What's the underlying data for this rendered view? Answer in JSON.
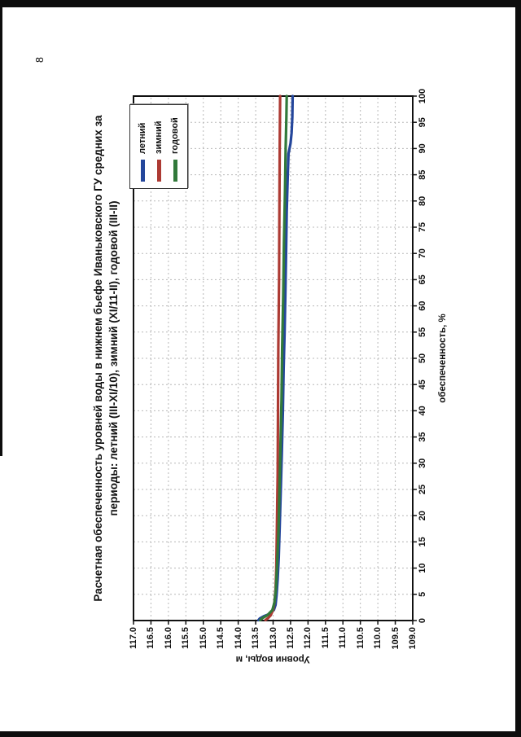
{
  "page": {
    "number": "8"
  },
  "chart_data": {
    "type": "line",
    "title_line1": "Расчетная обеспеченность уровней воды в нижнем бьефе Иваньковского ГУ средних за",
    "title_line2": "периоды: летний (III-XI/10), зимний (XI/11-II), годовой (III-II)",
    "xlabel": "обеспеченность, %",
    "ylabel": "Уровни воды, м",
    "xlim": [
      0,
      100
    ],
    "ylim": [
      109.0,
      117.0
    ],
    "x_ticks": [
      0,
      5,
      10,
      15,
      20,
      25,
      30,
      35,
      40,
      45,
      50,
      55,
      60,
      65,
      70,
      75,
      80,
      85,
      90,
      95,
      100
    ],
    "y_tick_labels": [
      "117.0",
      "116.5",
      "116.0",
      "115.5",
      "115.0",
      "114.5",
      "114.0",
      "113.5",
      "113.0",
      "112.5",
      "112.0",
      "111.5",
      "111.0",
      "110.5",
      "110.0",
      "109.5",
      "109.0"
    ],
    "grid": "dashed gridlines at every tick, both axes",
    "legend_position": "top-right inside plot",
    "series": [
      {
        "name": "летний",
        "color": "#24469b",
        "points": [
          [
            0.1,
            113.42
          ],
          [
            0.4,
            113.38
          ],
          [
            0.8,
            113.27
          ],
          [
            1.2,
            113.12
          ],
          [
            2,
            112.98
          ],
          [
            3,
            112.93
          ],
          [
            5,
            112.9
          ],
          [
            8,
            112.87
          ],
          [
            12,
            112.84
          ],
          [
            18,
            112.81
          ],
          [
            25,
            112.78
          ],
          [
            32,
            112.75
          ],
          [
            40,
            112.72
          ],
          [
            48,
            112.7
          ],
          [
            55,
            112.67
          ],
          [
            62,
            112.65
          ],
          [
            70,
            112.63
          ],
          [
            78,
            112.61
          ],
          [
            85,
            112.58
          ],
          [
            89,
            112.56
          ],
          [
            91,
            112.5
          ],
          [
            93,
            112.47
          ],
          [
            96,
            112.45
          ],
          [
            100,
            112.44
          ]
        ]
      },
      {
        "name": "зимний",
        "color": "#ad3a33",
        "points": [
          [
            0.1,
            113.22
          ],
          [
            0.5,
            113.14
          ],
          [
            1,
            113.07
          ],
          [
            2,
            113.0
          ],
          [
            3.5,
            112.96
          ],
          [
            6,
            112.93
          ],
          [
            10,
            112.91
          ],
          [
            18,
            112.89
          ],
          [
            28,
            112.87
          ],
          [
            40,
            112.86
          ],
          [
            52,
            112.85
          ],
          [
            65,
            112.83
          ],
          [
            78,
            112.82
          ],
          [
            90,
            112.81
          ],
          [
            100,
            112.8
          ]
        ]
      },
      {
        "name": "годовой",
        "color": "#31793a",
        "points": [
          [
            0.1,
            113.37
          ],
          [
            0.5,
            113.3
          ],
          [
            1,
            113.17
          ],
          [
            2,
            113.02
          ],
          [
            3.5,
            112.96
          ],
          [
            6,
            112.92
          ],
          [
            10,
            112.89
          ],
          [
            16,
            112.85
          ],
          [
            24,
            112.82
          ],
          [
            33,
            112.79
          ],
          [
            42,
            112.76
          ],
          [
            52,
            112.74
          ],
          [
            62,
            112.71
          ],
          [
            72,
            112.69
          ],
          [
            82,
            112.66
          ],
          [
            90,
            112.64
          ],
          [
            96,
            112.62
          ],
          [
            100,
            112.61
          ]
        ]
      }
    ]
  },
  "colors": {
    "grid": "#b8b8b8",
    "axis": "#111111",
    "page_frame": "#0d0d0d"
  }
}
